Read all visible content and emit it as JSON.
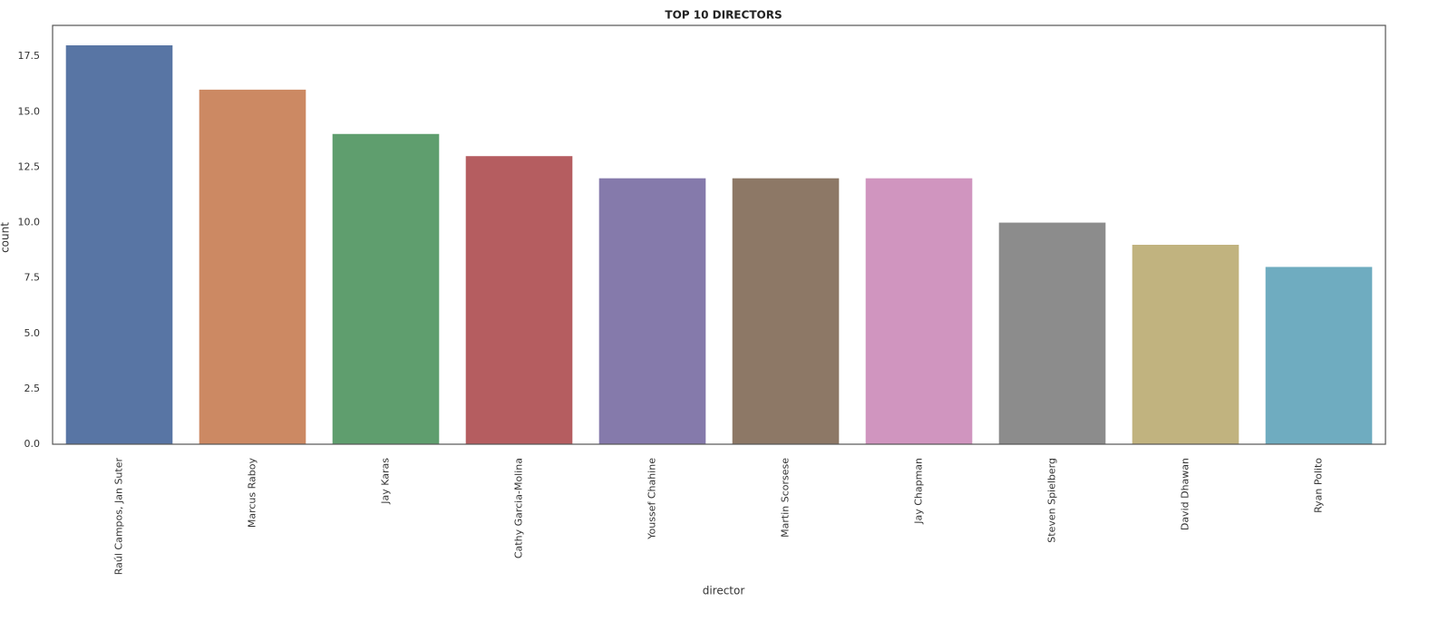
{
  "chart_data": {
    "type": "bar",
    "title": "TOP 10 DIRECTORS",
    "xlabel": "director",
    "ylabel": "count",
    "categories": [
      "Raúl Campos, Jan Suter",
      "Marcus Raboy",
      "Jay Karas",
      "Cathy Garcia-Molina",
      "Youssef Chahine",
      "Martin Scorsese",
      "Jay Chapman",
      "Steven Spielberg",
      "David Dhawan",
      "Ryan Polito"
    ],
    "values": [
      18,
      16,
      14,
      13,
      12,
      12,
      12,
      10,
      9,
      8
    ],
    "colors": [
      "#5875a4",
      "#cc8963",
      "#5f9e6e",
      "#b55d60",
      "#857aab",
      "#8d7866",
      "#d095bf",
      "#8c8c8c",
      "#c1b37f",
      "#6facc0"
    ],
    "ylim": [
      0,
      18.9
    ],
    "yticks": [
      {
        "value": 0,
        "label": "0.0"
      },
      2.5,
      {
        "value": 5,
        "label": "5.0"
      },
      7.5,
      {
        "value": 10,
        "label": "10.0"
      },
      12.5,
      {
        "value": 15,
        "label": "15.0"
      },
      17.5
    ],
    "grid": false
  }
}
